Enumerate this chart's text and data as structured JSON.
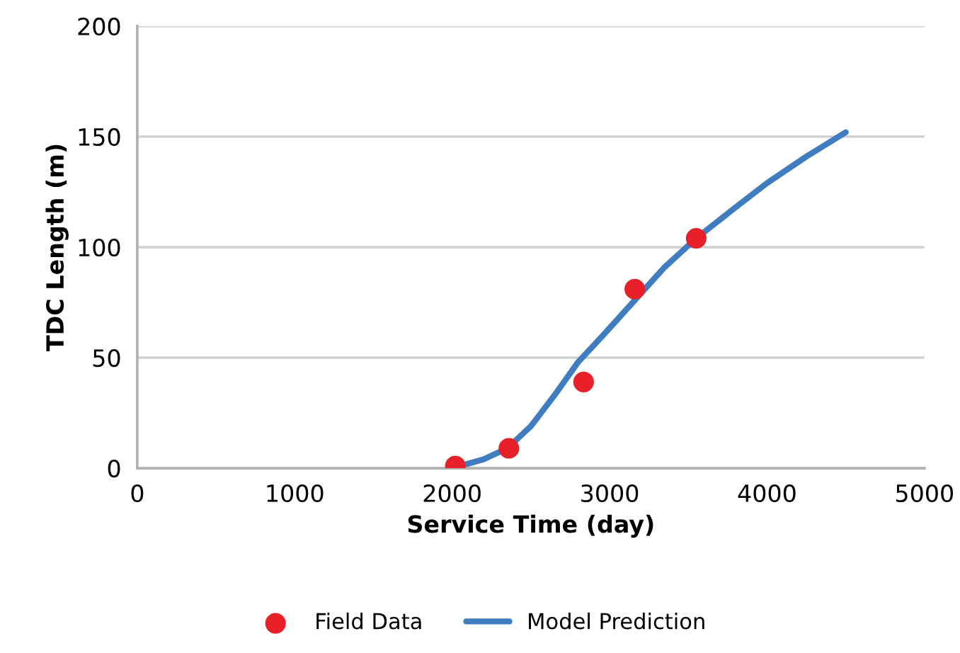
{
  "chart_data": {
    "type": "scatter",
    "xlabel": "Service Time (day)",
    "ylabel": "TDC Length (m)",
    "xlim": [
      0,
      5000
    ],
    "xticks": [
      0,
      1000,
      2000,
      3000,
      4000,
      5000
    ],
    "ylim": [
      0,
      200
    ],
    "yticks": [
      0,
      50,
      100,
      150,
      200
    ],
    "grid": "y",
    "legend": "bottom",
    "series": [
      {
        "name": "Field Data",
        "color": "#e8202a",
        "marker": "circle",
        "x": [
          2020,
          2360,
          2835,
          3160,
          3550
        ],
        "values": [
          1,
          9,
          39,
          81,
          104
        ]
      },
      {
        "name": "Model Prediction",
        "type": "line",
        "color": "#3f7cc0",
        "marker": "none",
        "x": [
          2000,
          2200,
          2350,
          2500,
          2650,
          2800,
          2970,
          3160,
          3350,
          3550,
          3800,
          4000,
          4250,
          4500
        ],
        "values": [
          0,
          4,
          9,
          19,
          33,
          48,
          61,
          76,
          91,
          104,
          118,
          129,
          141,
          152
        ]
      }
    ]
  }
}
